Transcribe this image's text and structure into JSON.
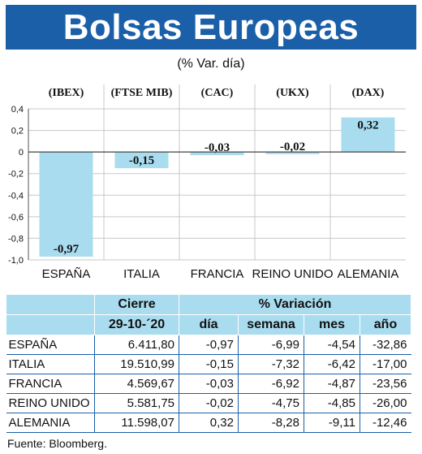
{
  "title": "Bolsas Europeas",
  "subtitle": "(% Var. día)",
  "chart_data": {
    "type": "bar",
    "categories": [
      "ESPAÑA",
      "ITALIA",
      "FRANCIA",
      "REINO UNIDO",
      "ALEMANIA"
    ],
    "indices": [
      "(IBEX)",
      "(FTSE MIB)",
      "(CAC)",
      "(UKX)",
      "(DAX)"
    ],
    "values": [
      -0.97,
      -0.15,
      -0.03,
      -0.02,
      0.32
    ],
    "value_labels": [
      "-0,97",
      "-0,15",
      "-0,03",
      "-0,02",
      "0,32"
    ],
    "ylim": [
      -1.0,
      0.4
    ],
    "yticks": [
      0.4,
      0.2,
      0,
      -0.2,
      -0.4,
      -0.6,
      -0.8,
      -1.0
    ],
    "ytick_labels": [
      "0,4",
      "0,2",
      "0",
      "-0,2",
      "-0,4",
      "-0,6",
      "-0,8",
      "-1,0"
    ],
    "grid": true,
    "bar_color": "#a9dcef"
  },
  "table": {
    "header_cierre": "Cierre",
    "header_variacion": "% Variación",
    "header_date": "29-10-´20",
    "header_cols": [
      "día",
      "semana",
      "mes",
      "año"
    ],
    "rows": [
      {
        "name": "ESPAÑA",
        "cierre": "6.411,80",
        "dia": "-0,97",
        "semana": "-6,99",
        "mes": "-4,54",
        "ano": "-32,86"
      },
      {
        "name": "ITALIA",
        "cierre": "19.510,99",
        "dia": "-0,15",
        "semana": "-7,32",
        "mes": "-6,42",
        "ano": "-17,00"
      },
      {
        "name": "FRANCIA",
        "cierre": "4.569,67",
        "dia": "-0,03",
        "semana": "-6,92",
        "mes": "-4,87",
        "ano": "-23,56"
      },
      {
        "name": "REINO UNIDO",
        "cierre": "5.581,75",
        "dia": "-0,02",
        "semana": "-4,75",
        "mes": "-4,85",
        "ano": "-26,00"
      },
      {
        "name": "ALEMANIA",
        "cierre": "11.598,07",
        "dia": "0,32",
        "semana": "-8,28",
        "mes": "-9,11",
        "ano": "-12,46"
      }
    ]
  },
  "source": "Fuente: Bloomberg."
}
